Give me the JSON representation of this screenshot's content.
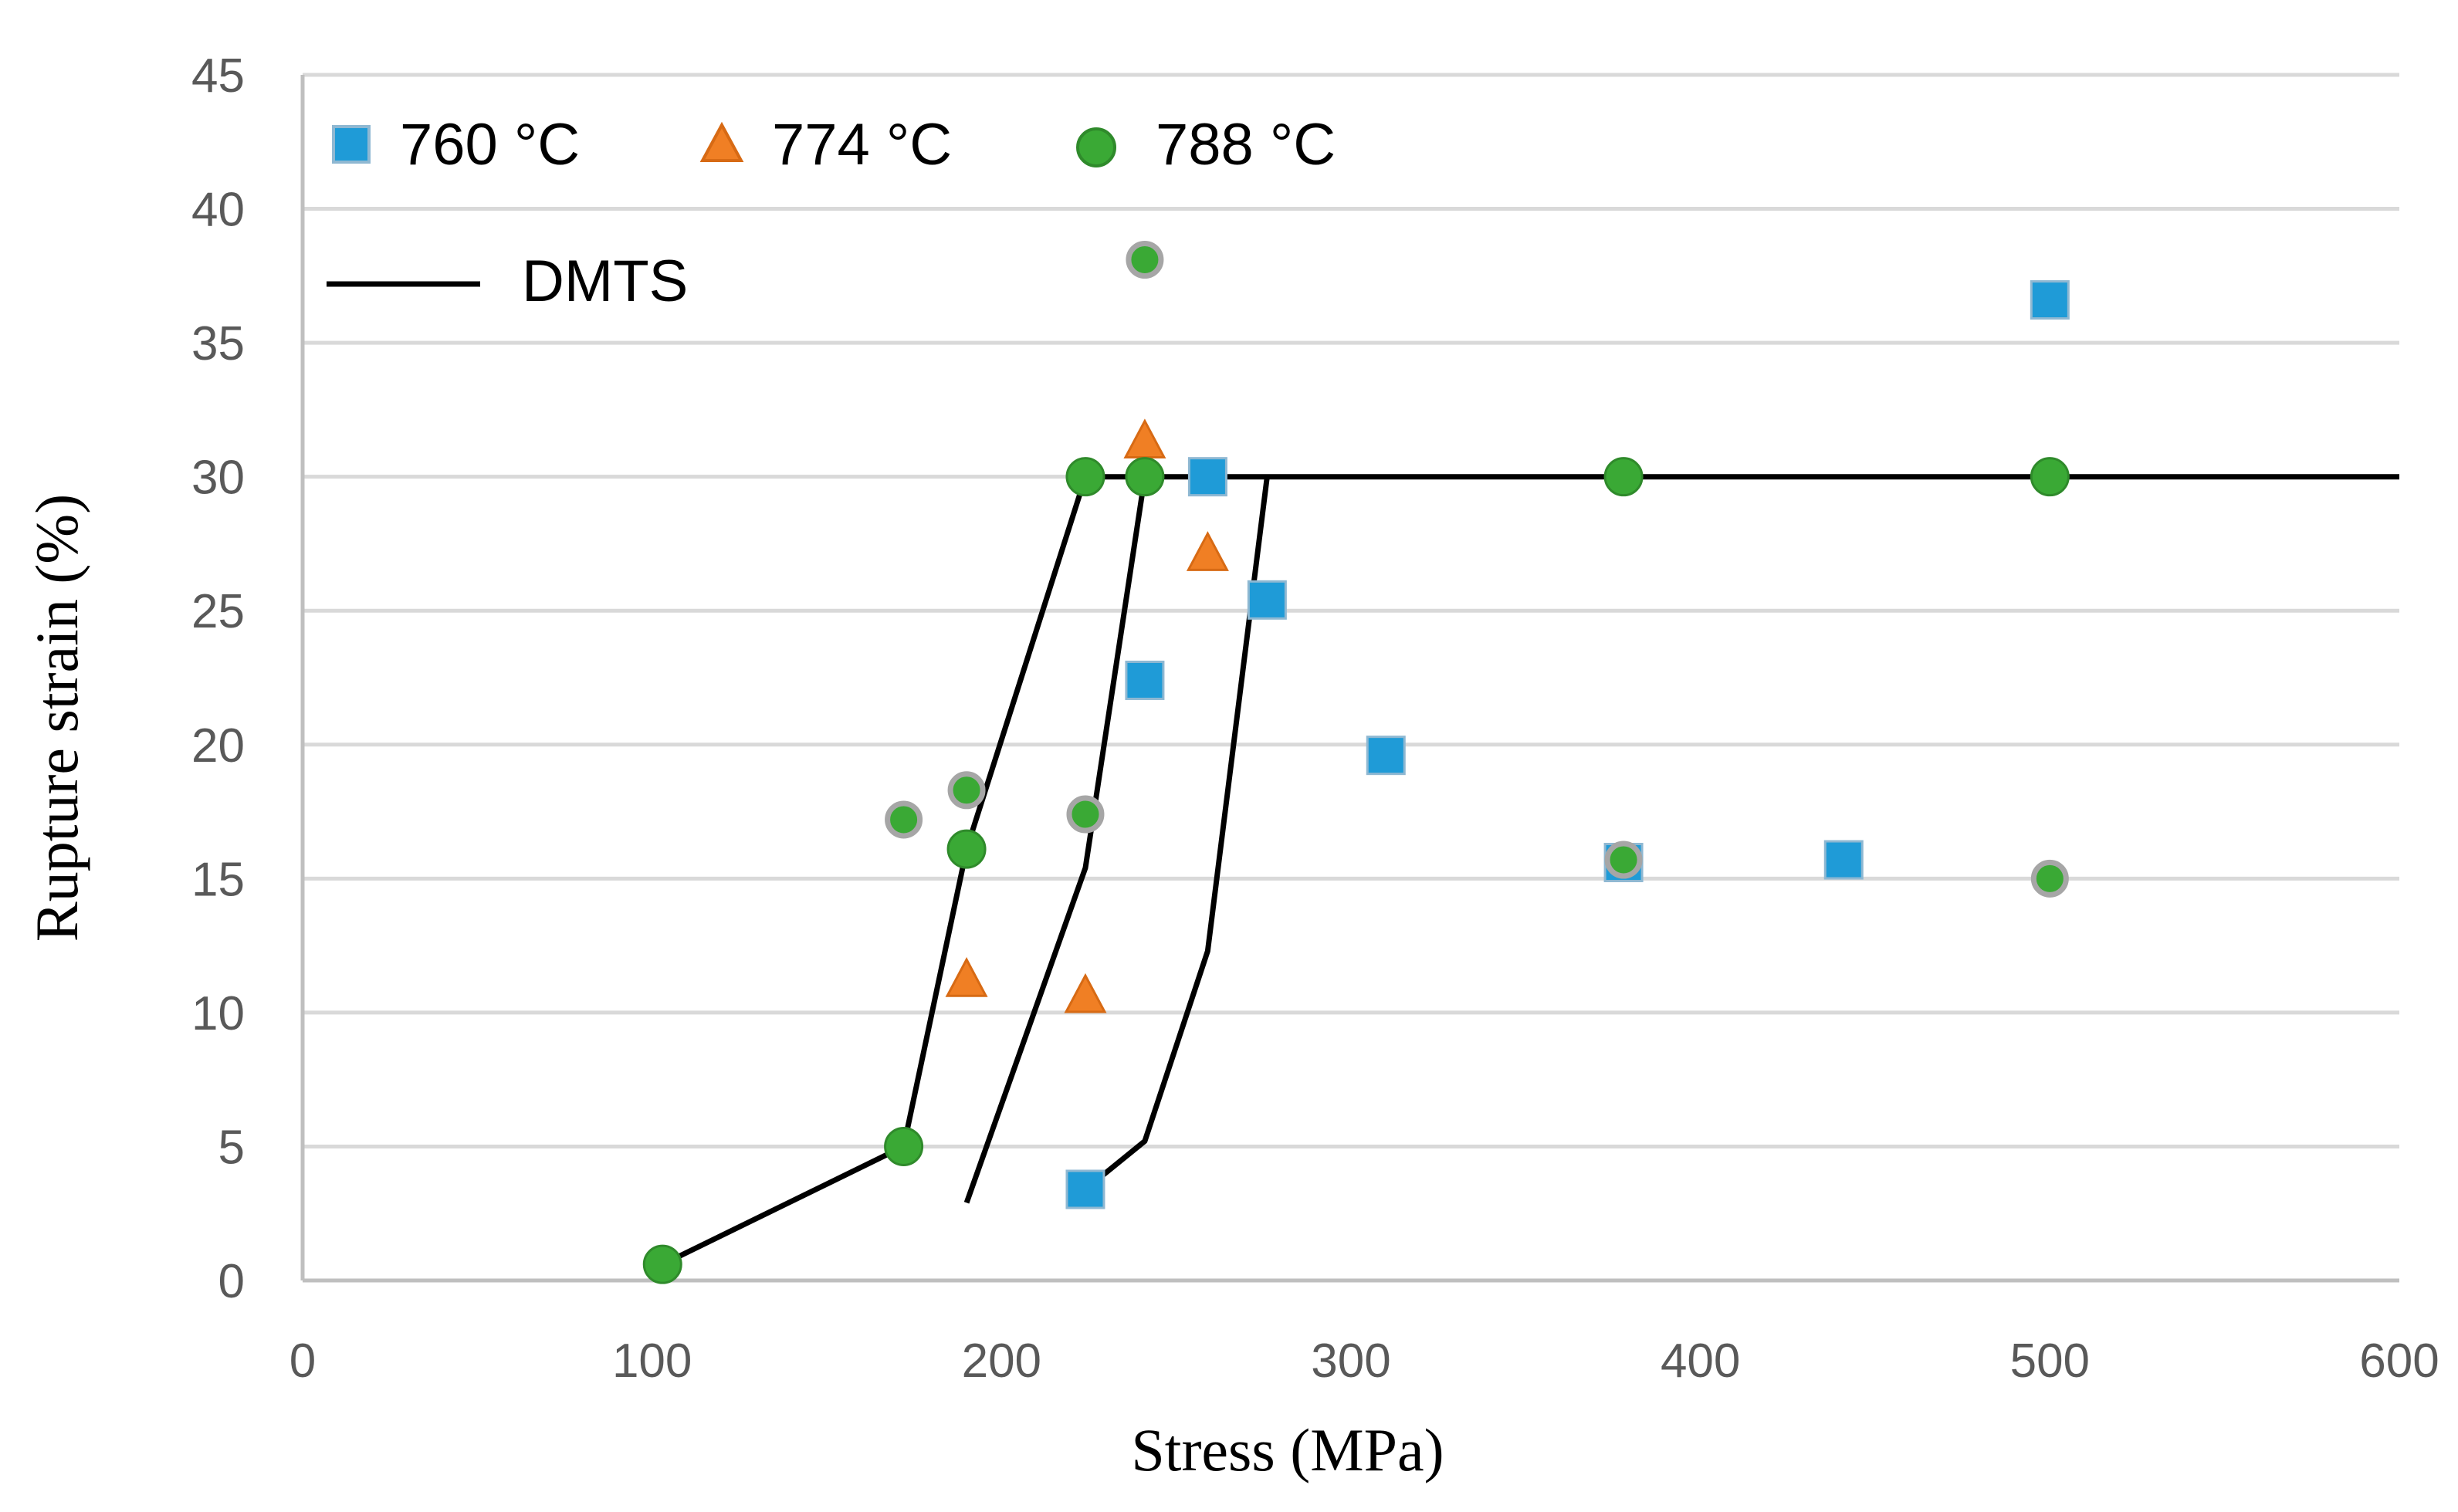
{
  "chart_data": {
    "type": "scatter",
    "title": "",
    "xlabel": "Stress (MPa)",
    "ylabel": "Rupture strain (%)",
    "xlim": [
      0,
      600
    ],
    "ylim": [
      0,
      45
    ],
    "xticks": [
      0,
      100,
      200,
      300,
      400,
      500,
      600
    ],
    "yticks": [
      0,
      5,
      10,
      15,
      20,
      25,
      30,
      35,
      40,
      45
    ],
    "grid": "horizontal",
    "legend_position": "top-left",
    "series": [
      {
        "name": "760 °C",
        "marker": "square",
        "color": "#1f9bd7",
        "points": [
          {
            "x": 224,
            "y": 3.4
          },
          {
            "x": 241,
            "y": 22.4
          },
          {
            "x": 259,
            "y": 30.0
          },
          {
            "x": 276,
            "y": 25.4
          },
          {
            "x": 310,
            "y": 19.6
          },
          {
            "x": 378,
            "y": 15.6
          },
          {
            "x": 441,
            "y": 15.7
          },
          {
            "x": 500,
            "y": 36.6
          }
        ]
      },
      {
        "name": "774 °C",
        "marker": "triangle",
        "color": "#f07f24",
        "points": [
          {
            "x": 190,
            "y": 11.2
          },
          {
            "x": 224,
            "y": 10.6
          },
          {
            "x": 241,
            "y": 31.3
          },
          {
            "x": 259,
            "y": 27.1
          }
        ]
      },
      {
        "name": "788 °C",
        "marker": "circle",
        "color": "#3aa935",
        "points": [
          {
            "x": 103,
            "y": 0.6
          },
          {
            "x": 172,
            "y": 5.0
          },
          {
            "x": 190,
            "y": 16.1
          },
          {
            "x": 224,
            "y": 30.0
          },
          {
            "x": 241,
            "y": 30.0
          },
          {
            "x": 378,
            "y": 30.0
          },
          {
            "x": 500,
            "y": 30.0
          },
          {
            "x": 172,
            "y": 17.2,
            "outlined": true
          },
          {
            "x": 190,
            "y": 18.3,
            "outlined": true
          },
          {
            "x": 224,
            "y": 17.4,
            "outlined": true
          },
          {
            "x": 241,
            "y": 38.1,
            "outlined": true
          },
          {
            "x": 378,
            "y": 15.7,
            "outlined": true
          },
          {
            "x": 500,
            "y": 15.0,
            "outlined": true
          }
        ]
      }
    ],
    "lines": [
      {
        "name": "DMTS",
        "color": "#000000",
        "show_in_legend": true,
        "points": [
          {
            "x": 103,
            "y": 0.6
          },
          {
            "x": 172,
            "y": 5.0
          },
          {
            "x": 190,
            "y": 16.1
          },
          {
            "x": 224,
            "y": 30.0
          },
          {
            "x": 600,
            "y": 30.0
          }
        ]
      },
      {
        "name": "DMTS",
        "color": "#000000",
        "show_in_legend": false,
        "points": [
          {
            "x": 190,
            "y": 2.9
          },
          {
            "x": 224,
            "y": 15.4
          },
          {
            "x": 241,
            "y": 30.0
          }
        ]
      },
      {
        "name": "DMTS",
        "color": "#000000",
        "show_in_legend": false,
        "points": [
          {
            "x": 224,
            "y": 3.4
          },
          {
            "x": 241,
            "y": 5.2
          },
          {
            "x": 259,
            "y": 12.3
          },
          {
            "x": 276,
            "y": 30.0
          }
        ]
      }
    ]
  }
}
